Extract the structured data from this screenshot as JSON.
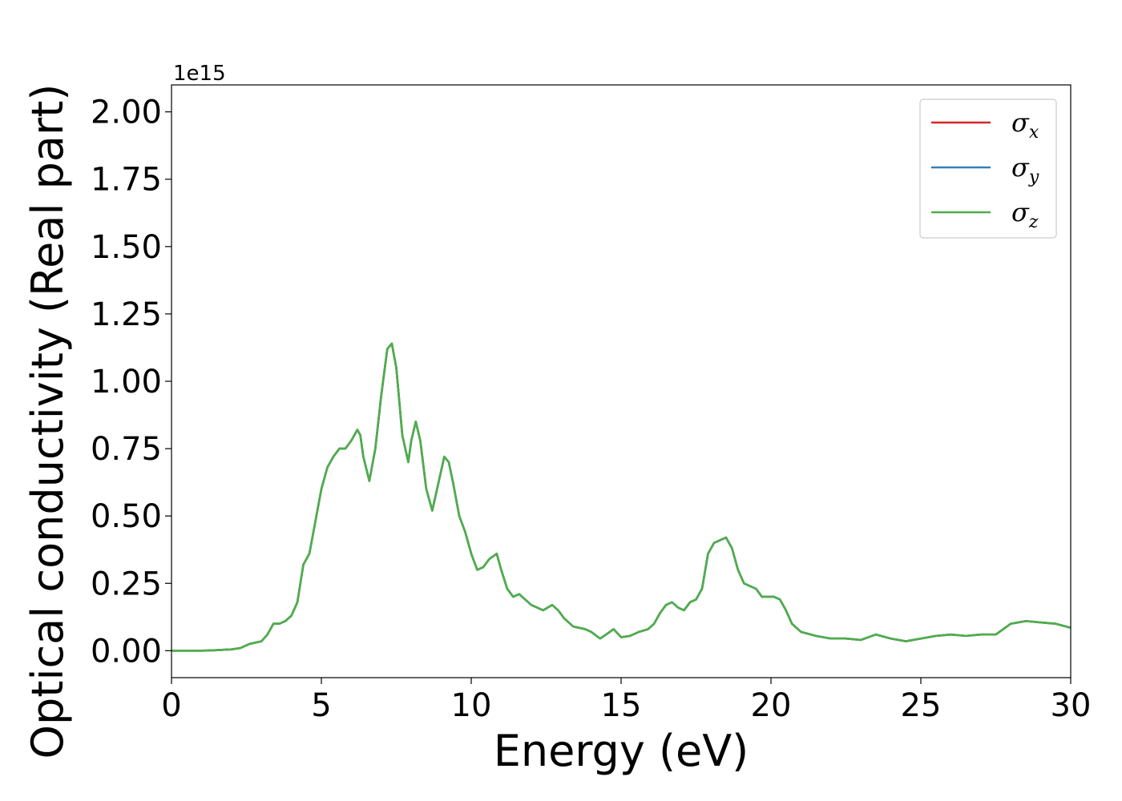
{
  "chart_data": {
    "type": "line",
    "title": "",
    "xlabel": "Energy (eV)",
    "ylabel": "Optical conductivity (Real part)",
    "y_offset_label": "1e15",
    "xlim": [
      0,
      30
    ],
    "ylim": [
      -0.1,
      2.1
    ],
    "x_ticks": [
      0,
      5,
      10,
      15,
      20,
      25,
      30
    ],
    "x_tick_labels": [
      "0",
      "5",
      "10",
      "15",
      "20",
      "25",
      "30"
    ],
    "y_ticks": [
      0,
      0.25,
      0.5,
      0.75,
      1.0,
      1.25,
      1.5,
      1.75,
      2.0
    ],
    "y_tick_labels": [
      "0.00",
      "0.25",
      "0.50",
      "0.75",
      "1.00",
      "1.25",
      "1.50",
      "1.75",
      "2.00"
    ],
    "grid": false,
    "legend_position": "top-right",
    "x": [
      0,
      0.5,
      1.0,
      1.5,
      2.0,
      2.3,
      2.6,
      3.0,
      3.2,
      3.4,
      3.6,
      3.8,
      4.0,
      4.2,
      4.4,
      4.6,
      4.8,
      5.0,
      5.2,
      5.4,
      5.6,
      5.8,
      6.0,
      6.2,
      6.3,
      6.4,
      6.6,
      6.8,
      7.0,
      7.2,
      7.35,
      7.5,
      7.7,
      7.9,
      8.0,
      8.15,
      8.3,
      8.5,
      8.7,
      8.9,
      9.1,
      9.25,
      9.4,
      9.6,
      9.8,
      10.0,
      10.2,
      10.4,
      10.6,
      10.85,
      11.0,
      11.2,
      11.4,
      11.6,
      11.8,
      12.0,
      12.2,
      12.4,
      12.7,
      12.9,
      13.1,
      13.4,
      13.8,
      14.0,
      14.3,
      14.5,
      14.75,
      15.0,
      15.3,
      15.6,
      15.9,
      16.1,
      16.3,
      16.5,
      16.7,
      16.9,
      17.1,
      17.3,
      17.5,
      17.7,
      17.9,
      18.1,
      18.3,
      18.5,
      18.7,
      18.9,
      19.1,
      19.3,
      19.5,
      19.7,
      19.9,
      20.1,
      20.3,
      20.5,
      20.7,
      21.0,
      21.5,
      22.0,
      22.5,
      23.0,
      23.5,
      24.0,
      24.5,
      25.0,
      25.5,
      26.0,
      26.5,
      27.0,
      27.5,
      28.0,
      28.5,
      29.0,
      29.5,
      30.0
    ],
    "series": [
      {
        "name": "σx",
        "color": "#d62728",
        "values": [
          0.0,
          0.0,
          0.0,
          0.002,
          0.005,
          0.01,
          0.025,
          0.035,
          0.06,
          0.1,
          0.1,
          0.11,
          0.13,
          0.18,
          0.32,
          0.36,
          0.48,
          0.6,
          0.68,
          0.72,
          0.75,
          0.75,
          0.78,
          0.82,
          0.8,
          0.72,
          0.63,
          0.75,
          0.95,
          1.12,
          1.14,
          1.05,
          0.8,
          0.7,
          0.78,
          0.85,
          0.78,
          0.6,
          0.52,
          0.62,
          0.72,
          0.7,
          0.62,
          0.5,
          0.44,
          0.36,
          0.3,
          0.31,
          0.34,
          0.36,
          0.3,
          0.23,
          0.2,
          0.21,
          0.19,
          0.17,
          0.16,
          0.15,
          0.17,
          0.15,
          0.12,
          0.09,
          0.08,
          0.07,
          0.045,
          0.06,
          0.08,
          0.05,
          0.055,
          0.07,
          0.08,
          0.1,
          0.14,
          0.17,
          0.18,
          0.16,
          0.15,
          0.18,
          0.19,
          0.23,
          0.36,
          0.4,
          0.41,
          0.42,
          0.38,
          0.3,
          0.25,
          0.24,
          0.23,
          0.2,
          0.2,
          0.2,
          0.19,
          0.15,
          0.1,
          0.07,
          0.055,
          0.045,
          0.045,
          0.04,
          0.06,
          0.045,
          0.035,
          0.045,
          0.055,
          0.06,
          0.055,
          0.06,
          0.06,
          0.1,
          0.11,
          0.105,
          0.1,
          0.085
        ]
      },
      {
        "name": "σy",
        "color": "#377eb8",
        "values": [
          0.0,
          0.0,
          0.0,
          0.002,
          0.005,
          0.01,
          0.025,
          0.035,
          0.06,
          0.1,
          0.1,
          0.11,
          0.13,
          0.18,
          0.32,
          0.36,
          0.48,
          0.6,
          0.68,
          0.72,
          0.75,
          0.75,
          0.78,
          0.82,
          0.8,
          0.72,
          0.63,
          0.75,
          0.95,
          1.12,
          1.14,
          1.05,
          0.8,
          0.7,
          0.78,
          0.85,
          0.78,
          0.6,
          0.52,
          0.62,
          0.72,
          0.7,
          0.62,
          0.5,
          0.44,
          0.36,
          0.3,
          0.31,
          0.34,
          0.36,
          0.3,
          0.23,
          0.2,
          0.21,
          0.19,
          0.17,
          0.16,
          0.15,
          0.17,
          0.15,
          0.12,
          0.09,
          0.08,
          0.07,
          0.045,
          0.06,
          0.08,
          0.05,
          0.055,
          0.07,
          0.08,
          0.1,
          0.14,
          0.17,
          0.18,
          0.16,
          0.15,
          0.18,
          0.19,
          0.23,
          0.36,
          0.4,
          0.41,
          0.42,
          0.38,
          0.3,
          0.25,
          0.24,
          0.23,
          0.2,
          0.2,
          0.2,
          0.19,
          0.15,
          0.1,
          0.07,
          0.055,
          0.045,
          0.045,
          0.04,
          0.06,
          0.045,
          0.035,
          0.045,
          0.055,
          0.06,
          0.055,
          0.06,
          0.06,
          0.1,
          0.11,
          0.105,
          0.1,
          0.085
        ]
      },
      {
        "name": "σz",
        "color": "#4daf4a",
        "values": [
          0.0,
          0.0,
          0.0,
          0.002,
          0.005,
          0.01,
          0.025,
          0.035,
          0.06,
          0.1,
          0.1,
          0.11,
          0.13,
          0.18,
          0.32,
          0.36,
          0.48,
          0.6,
          0.68,
          0.72,
          0.75,
          0.75,
          0.78,
          0.82,
          0.8,
          0.72,
          0.63,
          0.75,
          0.95,
          1.12,
          1.14,
          1.05,
          0.8,
          0.7,
          0.78,
          0.85,
          0.78,
          0.6,
          0.52,
          0.62,
          0.72,
          0.7,
          0.62,
          0.5,
          0.44,
          0.36,
          0.3,
          0.31,
          0.34,
          0.36,
          0.3,
          0.23,
          0.2,
          0.21,
          0.19,
          0.17,
          0.16,
          0.15,
          0.17,
          0.15,
          0.12,
          0.09,
          0.08,
          0.07,
          0.045,
          0.06,
          0.08,
          0.05,
          0.055,
          0.07,
          0.08,
          0.1,
          0.14,
          0.17,
          0.18,
          0.16,
          0.15,
          0.18,
          0.19,
          0.23,
          0.36,
          0.4,
          0.41,
          0.42,
          0.38,
          0.3,
          0.25,
          0.24,
          0.23,
          0.2,
          0.2,
          0.2,
          0.19,
          0.15,
          0.1,
          0.07,
          0.055,
          0.045,
          0.045,
          0.04,
          0.06,
          0.045,
          0.035,
          0.045,
          0.055,
          0.06,
          0.055,
          0.06,
          0.06,
          0.1,
          0.11,
          0.105,
          0.1,
          0.085
        ]
      }
    ],
    "legend": [
      {
        "symbol": "σ",
        "sub": "x",
        "color": "#d62728"
      },
      {
        "symbol": "σ",
        "sub": "y",
        "color": "#377eb8"
      },
      {
        "symbol": "σ",
        "sub": "z",
        "color": "#4daf4a"
      }
    ]
  }
}
